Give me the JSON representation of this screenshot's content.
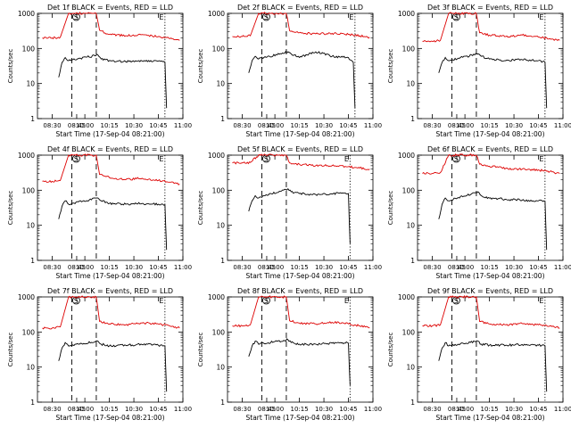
{
  "figure": {
    "xlabel": "Start Time (17-Sep-04 08:21:00)",
    "ylabel": "Counts/sec",
    "legend_text": "BLACK = Events, RED = LLD",
    "colors": {
      "events": "#000000",
      "lld": "#dd0000",
      "axes": "#000000",
      "background": "#ffffff"
    }
  },
  "chart_data": [
    {
      "panel": 1,
      "type": "line",
      "title": "Det 1f BLACK = Events, RED = LLD",
      "ylog": true,
      "ylim": [
        1,
        1000
      ],
      "xlim": [
        "08:21",
        "11:00"
      ],
      "x_ticks": [
        "08:30",
        "08:45",
        "10:00",
        "10:15",
        "10:30",
        "10:45",
        "11:00"
      ],
      "y_ticks": [
        "1",
        "10",
        "100",
        "1000"
      ],
      "markers": [
        {
          "label": "S",
          "time": "08:42",
          "style": "dashed"
        },
        {
          "label": "",
          "time": "10:07",
          "style": "dashed"
        },
        {
          "label": "E",
          "time": "10:49",
          "style": "dotted"
        }
      ],
      "series": [
        {
          "name": "RED = LLD",
          "color": "#dd0000",
          "x": [
            "08:24",
            "08:30",
            "08:35",
            "08:40",
            "08:43",
            "10:07",
            "10:09",
            "10:15",
            "10:25",
            "10:35",
            "10:45",
            "10:52",
            "10:58"
          ],
          "values": [
            200,
            200,
            210,
            1000,
            1000,
            1000,
            330,
            250,
            230,
            250,
            220,
            190,
            170
          ]
        },
        {
          "name": "BLACK = Events",
          "color": "#000000",
          "x": [
            "08:34",
            "08:36",
            "08:38",
            "08:40",
            "10:08",
            "10:10",
            "10:15",
            "10:25",
            "10:35",
            "10:45",
            "10:49",
            "10:50"
          ],
          "values": [
            15,
            40,
            55,
            45,
            65,
            50,
            45,
            42,
            44,
            44,
            40,
            2
          ]
        }
      ]
    },
    {
      "panel": 2,
      "type": "line",
      "title": "Det 2f BLACK = Events, RED = LLD",
      "ylog": true,
      "ylim": [
        1,
        1000
      ],
      "xlim": [
        "08:21",
        "11:00"
      ],
      "x_ticks": [
        "08:30",
        "08:45",
        "10:00",
        "10:15",
        "10:30",
        "10:45",
        "11:00"
      ],
      "y_ticks": [
        "1",
        "10",
        "100",
        "1000"
      ],
      "markers": [
        {
          "label": "S",
          "time": "08:42",
          "style": "dashed"
        },
        {
          "label": "",
          "time": "10:07",
          "style": "dashed"
        },
        {
          "label": "E",
          "time": "10:49",
          "style": "dotted"
        }
      ],
      "series": [
        {
          "name": "RED = LLD",
          "color": "#dd0000",
          "x": [
            "08:24",
            "08:30",
            "08:35",
            "08:40",
            "08:43",
            "10:07",
            "10:09",
            "10:15",
            "10:25",
            "10:35",
            "10:45",
            "10:52",
            "10:58"
          ],
          "values": [
            220,
            220,
            230,
            1000,
            1000,
            1000,
            320,
            280,
            260,
            270,
            250,
            230,
            210
          ]
        },
        {
          "name": "BLACK = Events",
          "color": "#000000",
          "x": [
            "08:34",
            "08:36",
            "08:38",
            "08:40",
            "10:08",
            "10:10",
            "10:15",
            "10:25",
            "10:35",
            "10:45",
            "10:48",
            "10:49"
          ],
          "values": [
            20,
            45,
            60,
            50,
            80,
            70,
            55,
            80,
            60,
            55,
            40,
            2
          ]
        }
      ]
    },
    {
      "panel": 3,
      "type": "line",
      "title": "Det 3f BLACK = Events, RED = LLD",
      "ylog": true,
      "ylim": [
        1,
        1000
      ],
      "xlim": [
        "08:21",
        "11:00"
      ],
      "x_ticks": [
        "08:30",
        "08:45",
        "10:00",
        "10:15",
        "10:30",
        "10:45",
        "11:00"
      ],
      "y_ticks": [
        "1",
        "10",
        "100",
        "1000"
      ],
      "markers": [
        {
          "label": "S",
          "time": "08:42",
          "style": "dashed"
        },
        {
          "label": "",
          "time": "10:07",
          "style": "dashed"
        },
        {
          "label": "E",
          "time": "10:49",
          "style": "dotted"
        }
      ],
      "series": [
        {
          "name": "RED = LLD",
          "color": "#dd0000",
          "x": [
            "08:24",
            "08:30",
            "08:35",
            "08:40",
            "08:43",
            "10:07",
            "10:09",
            "10:15",
            "10:25",
            "10:35",
            "10:45",
            "10:52",
            "10:58"
          ],
          "values": [
            160,
            160,
            170,
            1000,
            1000,
            1000,
            280,
            240,
            220,
            240,
            210,
            190,
            170
          ]
        },
        {
          "name": "BLACK = Events",
          "color": "#000000",
          "x": [
            "08:34",
            "08:36",
            "08:38",
            "08:40",
            "10:08",
            "10:10",
            "10:15",
            "10:25",
            "10:35",
            "10:45",
            "10:49",
            "10:50"
          ],
          "values": [
            20,
            40,
            55,
            45,
            70,
            60,
            50,
            45,
            48,
            45,
            40,
            2
          ]
        }
      ]
    },
    {
      "panel": 4,
      "type": "line",
      "title": "Det 4f BLACK = Events, RED = LLD",
      "ylog": true,
      "ylim": [
        1,
        1000
      ],
      "xlim": [
        "08:21",
        "11:00"
      ],
      "x_ticks": [
        "08:30",
        "08:45",
        "10:00",
        "10:15",
        "10:30",
        "10:45",
        "11:00"
      ],
      "y_ticks": [
        "1",
        "10",
        "100",
        "1000"
      ],
      "markers": [
        {
          "label": "S",
          "time": "08:42",
          "style": "dashed"
        },
        {
          "label": "",
          "time": "10:07",
          "style": "dashed"
        },
        {
          "label": "E",
          "time": "10:49",
          "style": "dotted"
        }
      ],
      "series": [
        {
          "name": "RED = LLD",
          "color": "#dd0000",
          "x": [
            "08:24",
            "08:30",
            "08:35",
            "08:40",
            "08:43",
            "10:07",
            "10:09",
            "10:15",
            "10:25",
            "10:35",
            "10:45",
            "10:52",
            "10:58"
          ],
          "values": [
            180,
            180,
            190,
            1000,
            1000,
            1000,
            280,
            230,
            200,
            220,
            190,
            170,
            150
          ]
        },
        {
          "name": "BLACK = Events",
          "color": "#000000",
          "x": [
            "08:34",
            "08:36",
            "08:38",
            "08:40",
            "10:08",
            "10:10",
            "10:15",
            "10:25",
            "10:35",
            "10:45",
            "10:49",
            "10:50"
          ],
          "values": [
            15,
            35,
            50,
            40,
            60,
            50,
            42,
            40,
            42,
            40,
            38,
            2
          ]
        }
      ]
    },
    {
      "panel": 5,
      "type": "line",
      "title": "Det 5f BLACK = Events, RED = LLD",
      "ylog": true,
      "ylim": [
        1,
        1000
      ],
      "xlim": [
        "08:21",
        "11:00"
      ],
      "x_ticks": [
        "08:30",
        "08:45",
        "10:00",
        "10:15",
        "10:30",
        "10:45",
        "11:00"
      ],
      "y_ticks": [
        "1",
        "10",
        "100",
        "1000"
      ],
      "markers": [
        {
          "label": "S",
          "time": "08:42",
          "style": "dashed"
        },
        {
          "label": "",
          "time": "10:07",
          "style": "dashed"
        },
        {
          "label": "E",
          "time": "10:46",
          "style": "dotted"
        }
      ],
      "series": [
        {
          "name": "RED = LLD",
          "color": "#dd0000",
          "x": [
            "08:24",
            "08:30",
            "08:35",
            "08:40",
            "08:43",
            "10:07",
            "10:09",
            "10:15",
            "10:25",
            "10:35",
            "10:45",
            "10:52",
            "10:58"
          ],
          "values": [
            600,
            600,
            620,
            1000,
            1000,
            1000,
            600,
            550,
            500,
            500,
            470,
            430,
            400
          ]
        },
        {
          "name": "BLACK = Events",
          "color": "#000000",
          "x": [
            "08:34",
            "08:36",
            "08:38",
            "08:40",
            "10:08",
            "10:10",
            "10:15",
            "10:25",
            "10:35",
            "10:40",
            "10:45",
            "10:46"
          ],
          "values": [
            25,
            50,
            70,
            60,
            110,
            90,
            80,
            75,
            78,
            85,
            80,
            3
          ]
        }
      ]
    },
    {
      "panel": 6,
      "type": "line",
      "title": "Det 6f BLACK = Events, RED = LLD",
      "ylog": true,
      "ylim": [
        1,
        1000
      ],
      "xlim": [
        "08:21",
        "11:00"
      ],
      "x_ticks": [
        "08:30",
        "08:45",
        "10:00",
        "10:15",
        "10:30",
        "10:45",
        "11:00"
      ],
      "y_ticks": [
        "1",
        "10",
        "100",
        "1000"
      ],
      "markers": [
        {
          "label": "S",
          "time": "08:42",
          "style": "dashed"
        },
        {
          "label": "",
          "time": "10:07",
          "style": "dashed"
        },
        {
          "label": "E",
          "time": "10:49",
          "style": "dotted"
        }
      ],
      "series": [
        {
          "name": "RED = LLD",
          "color": "#dd0000",
          "x": [
            "08:24",
            "08:30",
            "08:35",
            "08:40",
            "08:43",
            "10:07",
            "10:09",
            "10:15",
            "10:25",
            "10:35",
            "10:45",
            "10:52",
            "10:58"
          ],
          "values": [
            300,
            300,
            320,
            1000,
            1000,
            1000,
            550,
            480,
            420,
            400,
            380,
            340,
            300
          ]
        },
        {
          "name": "BLACK = Events",
          "color": "#000000",
          "x": [
            "08:34",
            "08:36",
            "08:38",
            "08:40",
            "10:08",
            "10:10",
            "10:15",
            "10:25",
            "10:35",
            "10:45",
            "10:49",
            "10:50"
          ],
          "values": [
            15,
            40,
            60,
            50,
            90,
            70,
            60,
            55,
            52,
            50,
            48,
            2
          ]
        }
      ]
    },
    {
      "panel": 7,
      "type": "line",
      "title": "Det 7f BLACK = Events, RED = LLD",
      "ylog": true,
      "ylim": [
        1,
        1000
      ],
      "xlim": [
        "08:21",
        "11:00"
      ],
      "x_ticks": [
        "08:30",
        "08:45",
        "10:00",
        "10:15",
        "10:30",
        "10:45",
        "11:00"
      ],
      "y_ticks": [
        "1",
        "10",
        "100",
        "1000"
      ],
      "markers": [
        {
          "label": "S",
          "time": "08:42",
          "style": "dashed"
        },
        {
          "label": "",
          "time": "10:07",
          "style": "dashed"
        },
        {
          "label": "E",
          "time": "10:49",
          "style": "dotted"
        }
      ],
      "series": [
        {
          "name": "RED = LLD",
          "color": "#dd0000",
          "x": [
            "08:24",
            "08:30",
            "08:35",
            "08:40",
            "08:43",
            "10:07",
            "10:09",
            "10:15",
            "10:25",
            "10:35",
            "10:45",
            "10:52",
            "10:58"
          ],
          "values": [
            130,
            130,
            140,
            1000,
            1000,
            1000,
            200,
            170,
            160,
            180,
            170,
            150,
            130
          ]
        },
        {
          "name": "BLACK = Events",
          "color": "#000000",
          "x": [
            "08:34",
            "08:36",
            "08:38",
            "08:40",
            "10:08",
            "10:10",
            "10:15",
            "10:25",
            "10:35",
            "10:45",
            "10:49",
            "10:50"
          ],
          "values": [
            15,
            35,
            50,
            40,
            55,
            45,
            40,
            42,
            44,
            42,
            40,
            2
          ]
        }
      ]
    },
    {
      "panel": 8,
      "type": "line",
      "title": "Det 8f BLACK = Events, RED = LLD",
      "ylog": true,
      "ylim": [
        1,
        1000
      ],
      "xlim": [
        "08:21",
        "11:00"
      ],
      "x_ticks": [
        "08:30",
        "08:45",
        "10:00",
        "10:15",
        "10:30",
        "10:45",
        "11:00"
      ],
      "y_ticks": [
        "1",
        "10",
        "100",
        "1000"
      ],
      "markers": [
        {
          "label": "S",
          "time": "08:42",
          "style": "dashed"
        },
        {
          "label": "",
          "time": "10:07",
          "style": "dashed"
        },
        {
          "label": "E",
          "time": "10:46",
          "style": "dotted"
        }
      ],
      "series": [
        {
          "name": "RED = LLD",
          "color": "#dd0000",
          "x": [
            "08:24",
            "08:30",
            "08:35",
            "08:40",
            "08:43",
            "10:07",
            "10:09",
            "10:15",
            "10:25",
            "10:35",
            "10:45",
            "10:52",
            "10:58"
          ],
          "values": [
            150,
            150,
            160,
            1000,
            1000,
            1000,
            210,
            180,
            170,
            190,
            170,
            150,
            130
          ]
        },
        {
          "name": "BLACK = Events",
          "color": "#000000",
          "x": [
            "08:34",
            "08:36",
            "08:38",
            "08:40",
            "10:08",
            "10:10",
            "10:15",
            "10:25",
            "10:35",
            "10:40",
            "10:45",
            "10:46"
          ],
          "values": [
            20,
            40,
            55,
            45,
            60,
            50,
            45,
            45,
            48,
            50,
            48,
            3
          ]
        }
      ]
    },
    {
      "panel": 9,
      "type": "line",
      "title": "Det 9f BLACK = Events, RED = LLD",
      "ylog": true,
      "ylim": [
        1,
        1000
      ],
      "xlim": [
        "08:21",
        "11:00"
      ],
      "x_ticks": [
        "08:30",
        "08:45",
        "10:00",
        "10:15",
        "10:30",
        "10:45",
        "11:00"
      ],
      "y_ticks": [
        "1",
        "10",
        "100",
        "1000"
      ],
      "markers": [
        {
          "label": "S",
          "time": "08:42",
          "style": "dashed"
        },
        {
          "label": "",
          "time": "10:07",
          "style": "dashed"
        },
        {
          "label": "E",
          "time": "10:49",
          "style": "dotted"
        }
      ],
      "series": [
        {
          "name": "RED = LLD",
          "color": "#dd0000",
          "x": [
            "08:24",
            "08:30",
            "08:35",
            "08:40",
            "08:43",
            "10:07",
            "10:09",
            "10:15",
            "10:25",
            "10:35",
            "10:45",
            "10:52",
            "10:58"
          ],
          "values": [
            150,
            150,
            160,
            1000,
            1000,
            1000,
            200,
            170,
            160,
            175,
            160,
            150,
            130
          ]
        },
        {
          "name": "BLACK = Events",
          "color": "#000000",
          "x": [
            "08:34",
            "08:36",
            "08:38",
            "08:40",
            "10:08",
            "10:10",
            "10:15",
            "10:25",
            "10:35",
            "10:45",
            "10:49",
            "10:50"
          ],
          "values": [
            15,
            35,
            50,
            40,
            55,
            45,
            42,
            42,
            44,
            42,
            40,
            2
          ]
        }
      ]
    }
  ]
}
